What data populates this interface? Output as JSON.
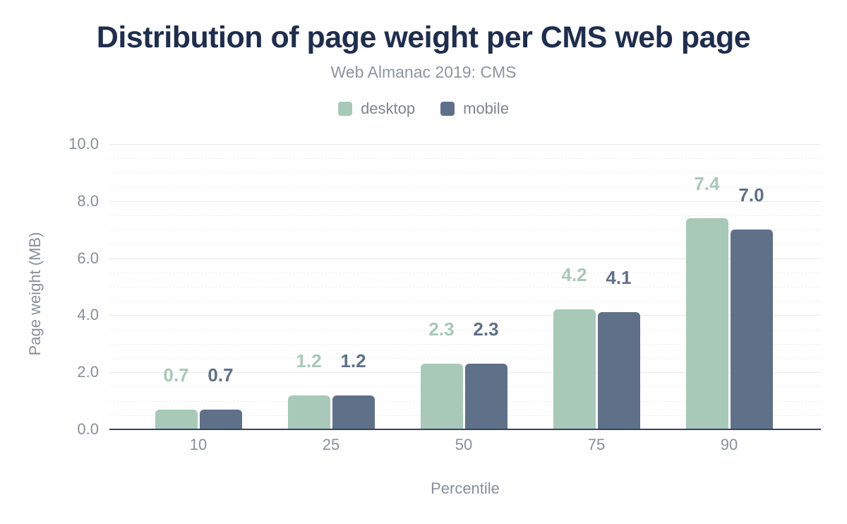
{
  "header": {
    "title": "Distribution of page weight per CMS web page",
    "subtitle": "Web Almanac 2019: CMS"
  },
  "legend": {
    "items": [
      {
        "label": "desktop",
        "color": "#a8c9b8"
      },
      {
        "label": "mobile",
        "color": "#5f7089"
      }
    ]
  },
  "chart_data": {
    "type": "bar",
    "title": "Distribution of page weight per CMS web page",
    "subtitle": "Web Almanac 2019: CMS",
    "categories": [
      "10",
      "25",
      "50",
      "75",
      "90"
    ],
    "series": [
      {
        "name": "desktop",
        "color": "#a8c9b8",
        "values": [
          0.7,
          1.2,
          2.3,
          4.2,
          7.4
        ],
        "labels": [
          "0.7",
          "1.2",
          "2.3",
          "4.2",
          "7.4"
        ]
      },
      {
        "name": "mobile",
        "color": "#5f7089",
        "values": [
          0.7,
          1.2,
          2.3,
          4.1,
          7.0
        ],
        "labels": [
          "0.7",
          "1.2",
          "2.3",
          "4.1",
          "7.0"
        ]
      }
    ],
    "xlabel": "Percentile",
    "ylabel": "Page weight (MB)",
    "ylim": [
      0,
      10
    ],
    "yticks": [
      {
        "value": 0,
        "label": "0.0"
      },
      {
        "value": 2,
        "label": "2.0"
      },
      {
        "value": 4,
        "label": "4.0"
      },
      {
        "value": 6,
        "label": "6.0"
      },
      {
        "value": 8,
        "label": "8.0"
      },
      {
        "value": 10,
        "label": "10.0"
      }
    ],
    "minor_grid_step": 0.5,
    "major_grid_step": 2,
    "grid": true,
    "legend_position": "top",
    "bar_value_labels": true
  },
  "colors": {
    "title": "#1f2e4e",
    "text_muted": "#878f99",
    "axis_line": "#344461",
    "grid_major": "#e9e9e9",
    "grid_minor": "#f1f1f1",
    "background": "#ffffff"
  }
}
